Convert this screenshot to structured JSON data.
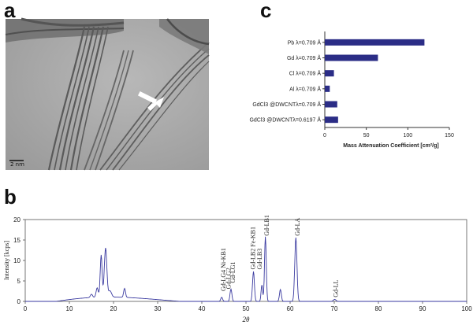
{
  "panels": {
    "a": "a",
    "b": "b",
    "c": "c"
  },
  "tem": {
    "scale_label": "2 nm"
  },
  "chart_data": [
    {
      "type": "bar",
      "orientation": "horizontal",
      "panel": "c",
      "categories": [
        "Pb λ=0.709 Å",
        "Gd λ=0.709 Å",
        "Cl λ=0.709 Å",
        "Al λ=0.709 Å",
        "GdCl3 @DWCNTλ=0.709 Å",
        "GdCl3 @DWCNTλ=0.6197 Å"
      ],
      "values": [
        120,
        64,
        11,
        6,
        15,
        16
      ],
      "xlim": [
        0,
        150
      ],
      "xticks": [
        0,
        50,
        100,
        150
      ],
      "xlabel": "Mass Attenuation Coefficient [cm²/g]",
      "color": "#2b2d86",
      "grid": false
    },
    {
      "type": "line",
      "panel": "b",
      "xlabel": "2θ",
      "ylabel": "Intensity [kcps]",
      "xlim": [
        0,
        100
      ],
      "ylim": [
        0,
        20
      ],
      "xticks": [
        0,
        10,
        20,
        30,
        40,
        50,
        60,
        70,
        80,
        90,
        100
      ],
      "yticks": [
        0,
        5,
        10,
        15,
        20
      ],
      "color": "#3a3aa0",
      "background": 0.25,
      "peaks": [
        {
          "x": 15.0,
          "h": 0.8,
          "w": 0.35
        },
        {
          "x": 16.3,
          "h": 2.3,
          "w": 0.35
        },
        {
          "x": 17.2,
          "h": 10.3,
          "w": 0.3
        },
        {
          "x": 18.2,
          "h": 12.0,
          "w": 0.4
        },
        {
          "x": 19.2,
          "h": 1.5,
          "w": 0.5
        },
        {
          "x": 22.5,
          "h": 2.2,
          "w": 0.3
        },
        {
          "x": 44.5,
          "h": 1.0,
          "w": 0.3
        },
        {
          "x": 46.6,
          "h": 3.0,
          "w": 0.3
        },
        {
          "x": 51.7,
          "h": 7.3,
          "w": 0.3
        },
        {
          "x": 53.6,
          "h": 4.0,
          "w": 0.25
        },
        {
          "x": 54.4,
          "h": 15.8,
          "w": 0.28
        },
        {
          "x": 57.8,
          "h": 2.9,
          "w": 0.3
        },
        {
          "x": 61.3,
          "h": 15.6,
          "w": 0.35
        },
        {
          "x": 70.1,
          "h": 0.5,
          "w": 0.4
        }
      ],
      "annotations": [
        {
          "text": "Gd-LG4 Ni-KB1",
          "x": 44.8,
          "y": 2.5
        },
        {
          "text": "Gd-LG2",
          "x": 46.0,
          "y": 3.0
        },
        {
          "text": "Gd-LG1",
          "x": 47.0,
          "y": 4.5
        },
        {
          "text": "Gd-LB2 Fe-KB1",
          "x": 51.5,
          "y": 7.8
        },
        {
          "text": "Gd-LB3",
          "x": 53.0,
          "y": 7.8
        },
        {
          "text": "Gd-LB1",
          "x": 54.6,
          "y": 16.0
        },
        {
          "text": "Gd-LA",
          "x": 61.6,
          "y": 16.0
        },
        {
          "text": "Gd-LL",
          "x": 70.3,
          "y": 1.0
        }
      ]
    }
  ]
}
